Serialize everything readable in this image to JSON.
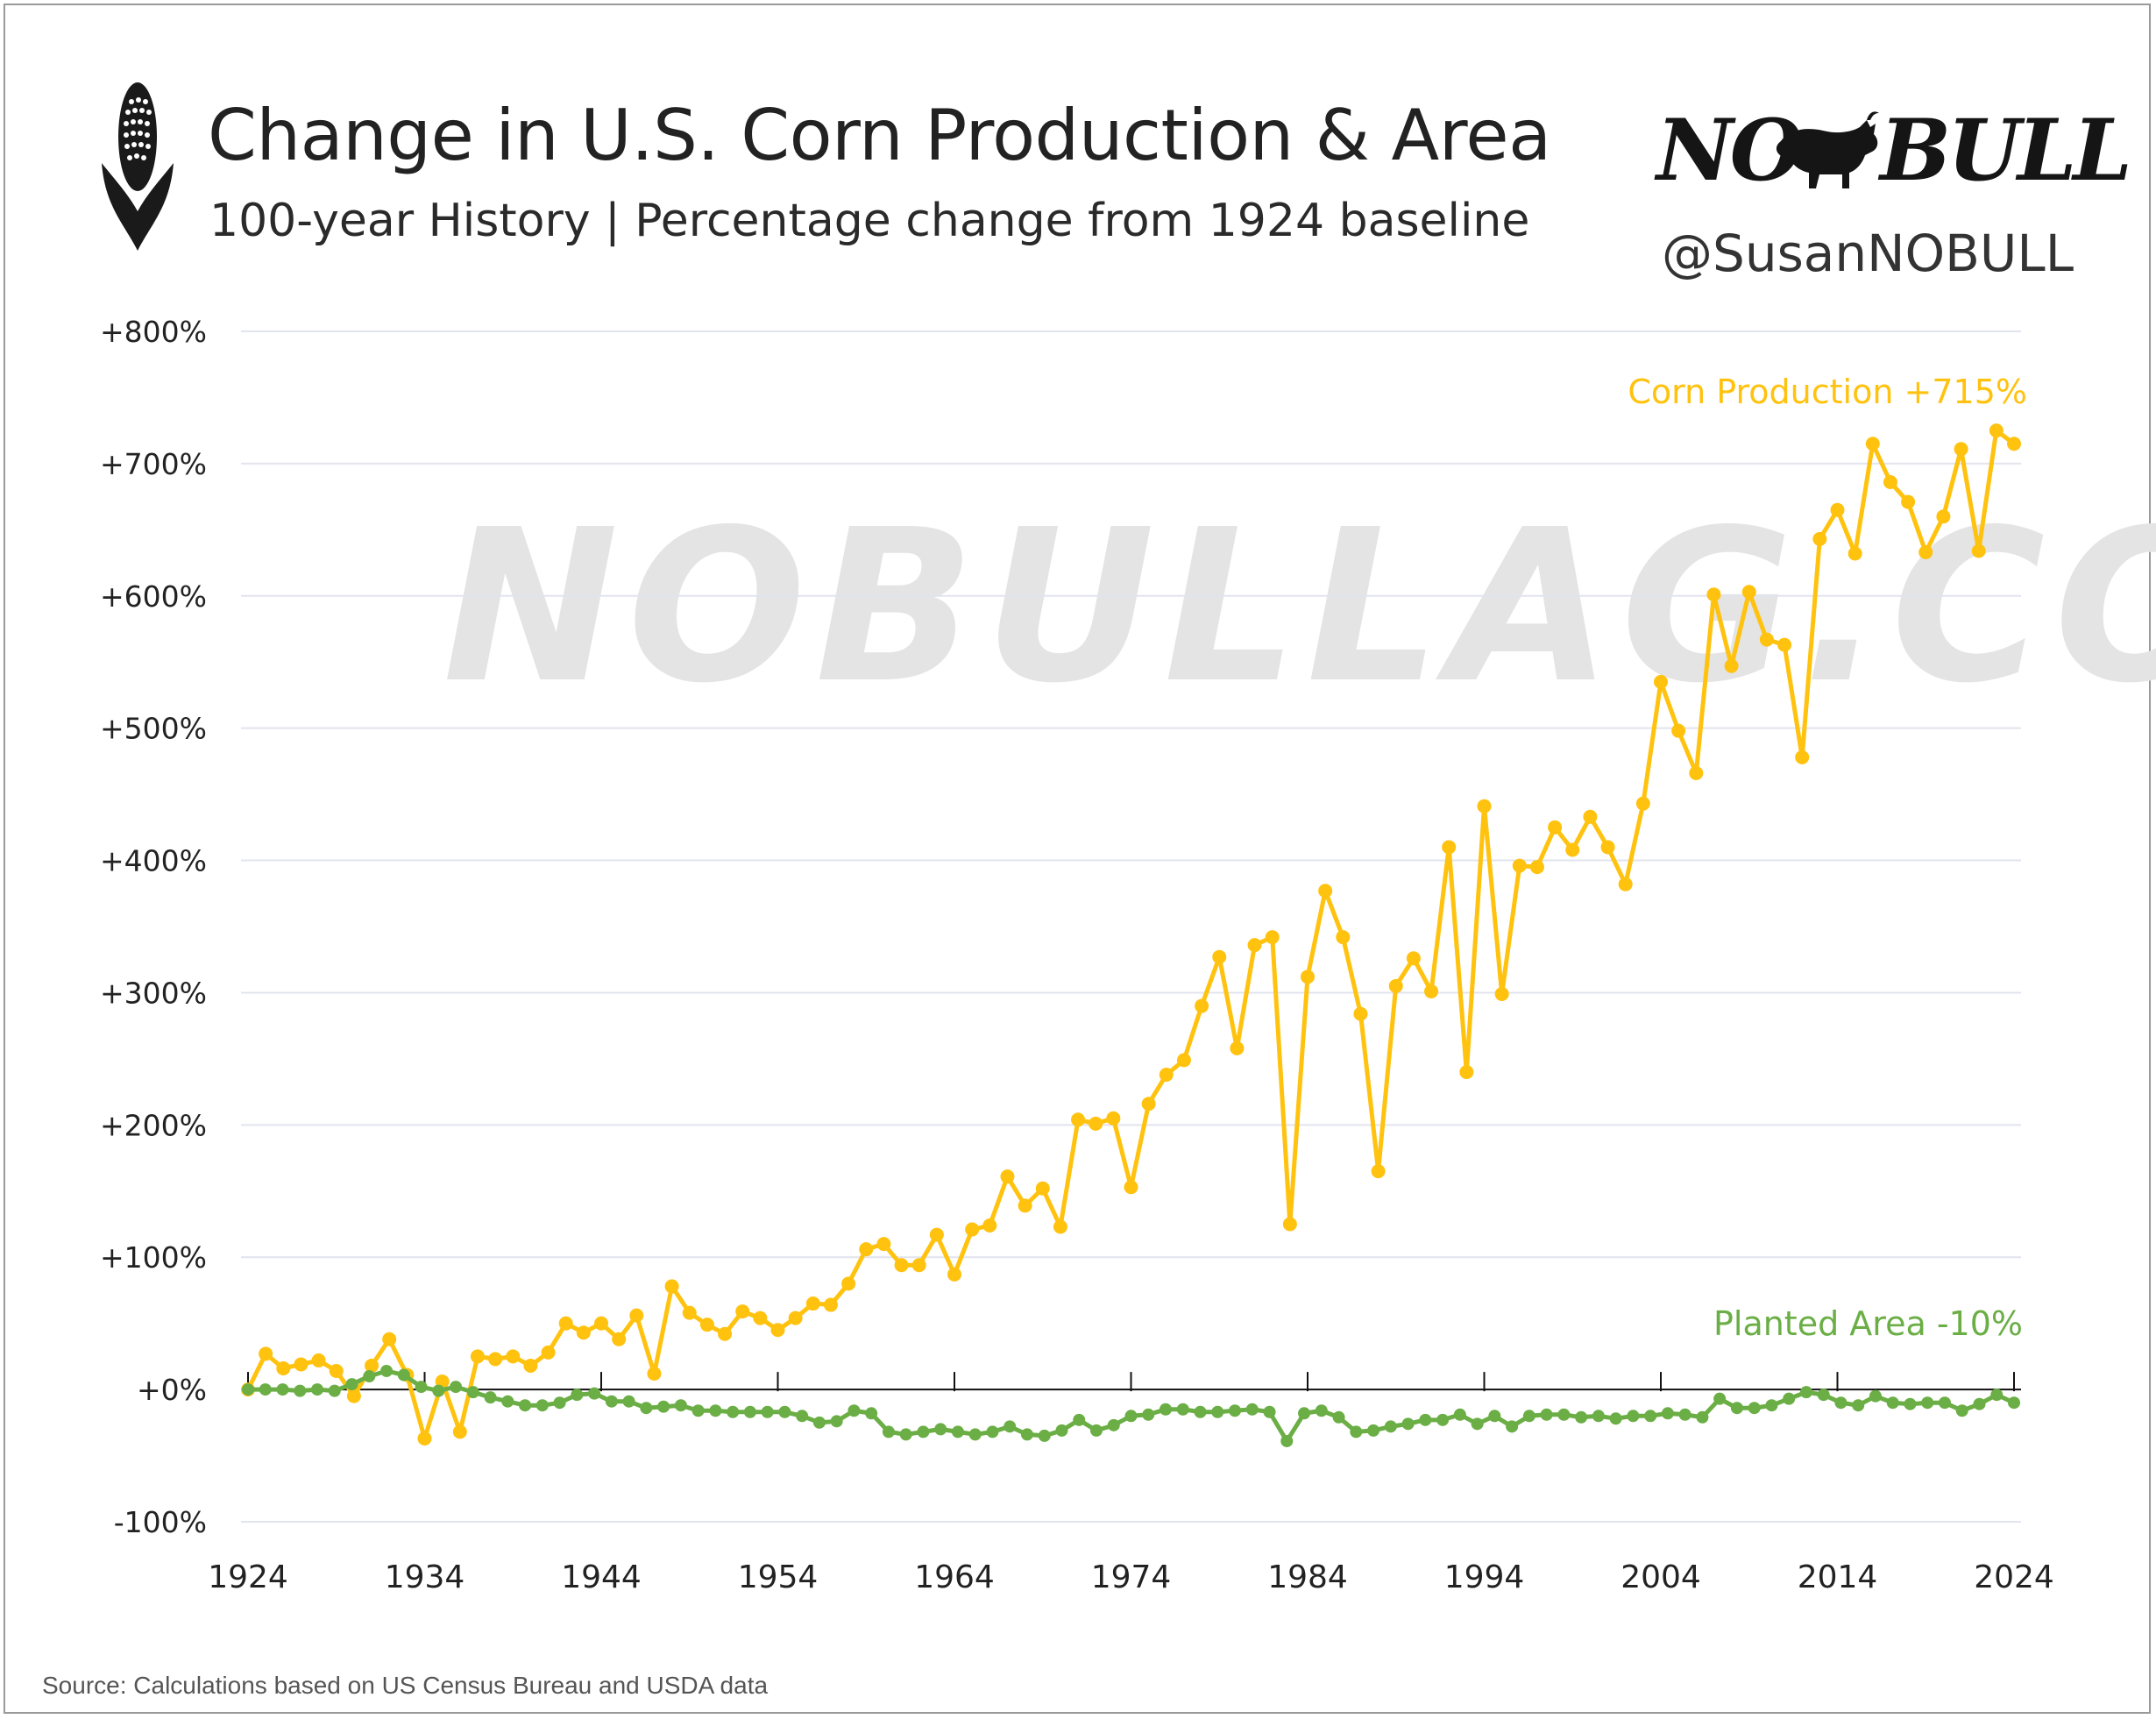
{
  "header": {
    "title": "Change in U.S. Corn Production & Area",
    "subtitle": "100-year History | Percentage change from 1924 baseline",
    "brand_left": "NO",
    "brand_right": "BULL",
    "handle": "@SusanNOBULL",
    "icon": "corn-cob-icon",
    "brand_icon": "bull-icon"
  },
  "watermark": "NOBULLAG.COM",
  "source": "Source: Calculations based on US Census Bureau and USDA data",
  "colors": {
    "production": "#FFC20E",
    "area": "#6AAE45",
    "grid": "#e2e4ee"
  },
  "chart_data": {
    "type": "line",
    "title": "Change in U.S. Corn Production & Area",
    "subtitle": "100-year History | Percentage change from 1924 baseline",
    "xlabel": "",
    "ylabel": "",
    "x_start": 1924,
    "x_end": 2024,
    "xlim": [
      1924,
      2024
    ],
    "ylim": [
      -100,
      800
    ],
    "x_ticks": [
      "1924",
      "1934",
      "1944",
      "1954",
      "1964",
      "1974",
      "1984",
      "1994",
      "2004",
      "2014",
      "2024"
    ],
    "y_ticks": [
      "+800%",
      "+700%",
      "+600%",
      "+500%",
      "+400%",
      "+300%",
      "+200%",
      "+100%",
      "+0%",
      "-100%"
    ],
    "grid": true,
    "series": [
      {
        "name": "Corn Production",
        "label": "Corn Production  +715%",
        "values": [
          0,
          27,
          16,
          19,
          22,
          14,
          -5,
          18,
          38,
          11,
          -37,
          6,
          -32,
          25,
          23,
          25,
          18,
          28,
          50,
          43,
          50,
          38,
          56,
          12,
          78,
          58,
          49,
          42,
          59,
          54,
          45,
          54,
          65,
          64,
          80,
          106,
          110,
          94,
          94,
          117,
          87,
          121,
          124,
          161,
          139,
          152,
          123,
          204,
          201,
          205,
          153,
          216,
          238,
          249,
          290,
          327,
          258,
          336,
          342,
          125,
          312,
          377,
          342,
          284,
          165,
          305,
          326,
          301,
          410,
          240,
          441,
          299,
          396,
          395,
          425,
          408,
          433,
          410,
          382,
          443,
          535,
          498,
          466,
          601,
          547,
          603,
          567,
          563,
          478,
          643,
          665,
          632,
          715,
          686,
          671,
          633,
          660,
          711,
          634,
          725,
          715
        ]
      },
      {
        "name": "Planted Area",
        "label": "Planted Area  -10%",
        "values": [
          0,
          0,
          0,
          -1,
          0,
          -1,
          4,
          10,
          14,
          11,
          2,
          -1,
          2,
          -2,
          -6,
          -9,
          -12,
          -12,
          -10,
          -4,
          -3,
          -9,
          -9,
          -14,
          -13,
          -12,
          -16,
          -16,
          -17,
          -17,
          -17,
          -17,
          -20,
          -25,
          -24,
          -16,
          -18,
          -32,
          -34,
          -32,
          -30,
          -32,
          -34,
          -32,
          -28,
          -34,
          -35,
          -31,
          -23,
          -31,
          -27,
          -20,
          -19,
          -15,
          -15,
          -17,
          -17,
          -16,
          -15,
          -17,
          -39,
          -18,
          -16,
          -21,
          -32,
          -31,
          -28,
          -26,
          -23,
          -23,
          -19,
          -26,
          -20,
          -28,
          -20,
          -19,
          -19,
          -21,
          -20,
          -22,
          -20,
          -20,
          -18,
          -19,
          -21,
          -7,
          -14,
          -14,
          -12,
          -7,
          -2,
          -4,
          -10,
          -12,
          -5,
          -10,
          -11,
          -10,
          -10,
          -16,
          -11,
          -4,
          -10
        ]
      }
    ]
  }
}
